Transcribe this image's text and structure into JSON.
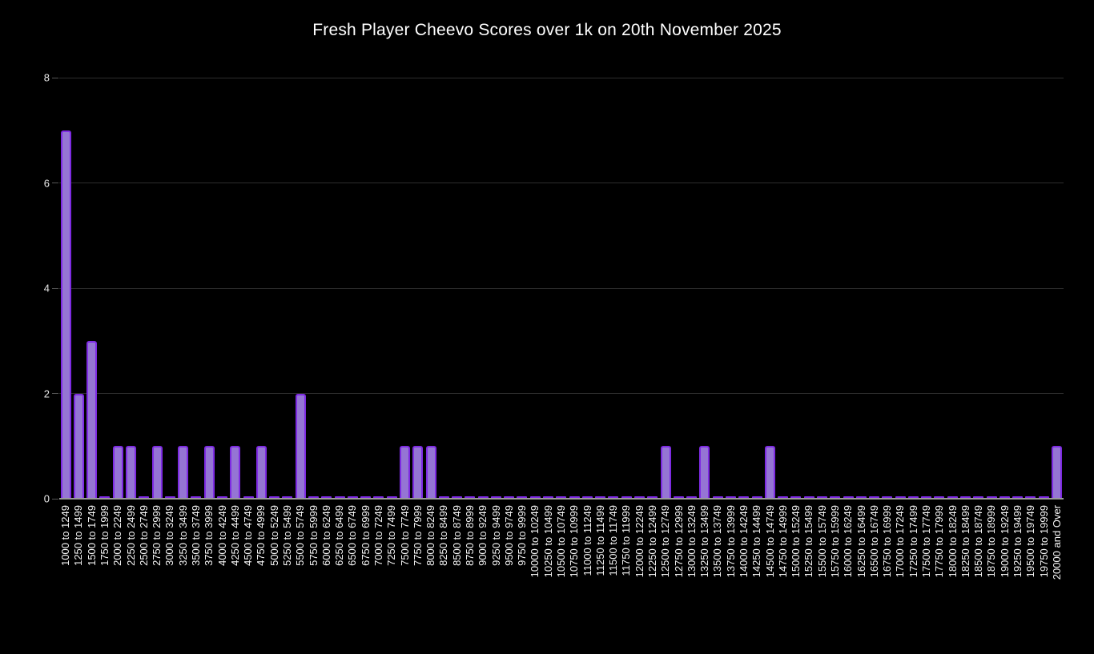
{
  "colors": {
    "background": "#000000",
    "title": "#ffffff",
    "bar_fill": "#9575d4",
    "bar_border": "#7e2be2",
    "gridline": "#2d2d2d",
    "axis_line": "#999999",
    "tick": "#565656",
    "y_label": "#e8e8e8",
    "x_label": "#f5f5f5"
  },
  "chart_data": {
    "type": "bar",
    "title": "Fresh Player Cheevo Scores over 1k on 20th November 2025",
    "xlabel": "",
    "ylabel": "",
    "ylim": [
      0,
      8
    ],
    "yticks": [
      0,
      2,
      4,
      6,
      8
    ],
    "grid": true,
    "legend": false,
    "x_tick_rotation": 90,
    "categories": [
      "1000 to 1249",
      "1250 to 1499",
      "1500 to 1749",
      "1750 to 1999",
      "2000 to 2249",
      "2250 to 2499",
      "2500 to 2749",
      "2750 to 2999",
      "3000 to 3249",
      "3250 to 3499",
      "3500 to 3749",
      "3750 to 3999",
      "4000 to 4249",
      "4250 to 4499",
      "4500 to 4749",
      "4750 to 4999",
      "5000 to 5249",
      "5250 to 5499",
      "5500 to 5749",
      "5750 to 5999",
      "6000 to 6249",
      "6250 to 6499",
      "6500 to 6749",
      "6750 to 6999",
      "7000 to 7249",
      "7250 to 7499",
      "7500 to 7749",
      "7750 to 7999",
      "8000 to 8249",
      "8250 to 8499",
      "8500 to 8749",
      "8750 to 8999",
      "9000 to 9249",
      "9250 to 9499",
      "9500 to 9749",
      "9750 to 9999",
      "10000 to 10249",
      "10250 to 10499",
      "10500 to 10749",
      "10750 to 10999",
      "11000 to 11249",
      "11250 to 11499",
      "11500 to 11749",
      "11750 to 11999",
      "12000 to 12249",
      "12250 to 12499",
      "12500 to 12749",
      "12750 to 12999",
      "13000 to 13249",
      "13250 to 13499",
      "13500 to 13749",
      "13750 to 13999",
      "14000 to 14249",
      "14250 to 14499",
      "14500 to 14749",
      "14750 to 14999",
      "15000 to 15249",
      "15250 to 15499",
      "15500 to 15749",
      "15750 to 15999",
      "16000 to 16249",
      "16250 to 16499",
      "16500 to 16749",
      "16750 to 16999",
      "17000 to 17249",
      "17250 to 17499",
      "17500 to 17749",
      "17750 to 17999",
      "18000 to 18249",
      "18250 to 18499",
      "18500 to 18749",
      "18750 to 18999",
      "19000 to 19249",
      "19250 to 19499",
      "19500 to 19749",
      "19750 to 19999",
      "20000 and Over"
    ],
    "values": [
      7,
      2,
      3,
      0,
      1,
      1,
      0,
      1,
      0,
      1,
      0,
      1,
      0,
      1,
      0,
      1,
      0,
      0,
      2,
      0,
      0,
      0,
      0,
      0,
      0,
      0,
      1,
      1,
      1,
      0,
      0,
      0,
      0,
      0,
      0,
      0,
      0,
      0,
      0,
      0,
      0,
      0,
      0,
      0,
      0,
      0,
      1,
      0,
      0,
      1,
      0,
      0,
      0,
      0,
      1,
      0,
      0,
      0,
      0,
      0,
      0,
      0,
      0,
      0,
      0,
      0,
      0,
      0,
      0,
      0,
      0,
      0,
      0,
      0,
      0,
      0,
      1
    ]
  }
}
